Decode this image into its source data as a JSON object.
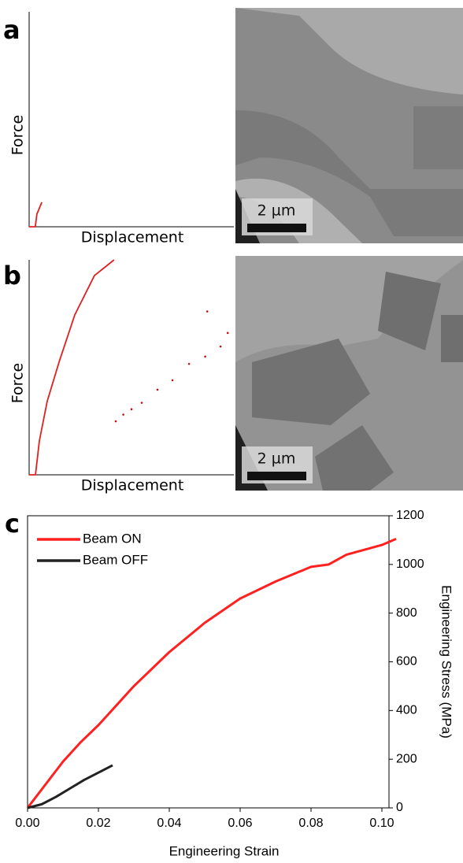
{
  "chart_data": [
    {
      "type": "line",
      "label": "a",
      "xlabel": "Displacement",
      "ylabel": "Force",
      "scale_bar": "2 µm",
      "xlim": [
        0,
        100
      ],
      "ylim": [
        0,
        100
      ],
      "series": [
        {
          "color": "#e02020",
          "style": "line",
          "x": [
            0,
            3,
            3.8,
            6.2
          ],
          "values": [
            0,
            0,
            5.9,
            11.4
          ]
        }
      ]
    },
    {
      "type": "line",
      "label": "b",
      "xlabel": "Displacement",
      "ylabel": "Force",
      "scale_bar": "2 µm",
      "xlim": [
        0,
        100
      ],
      "ylim": [
        0,
        100
      ],
      "series": [
        {
          "color": "#e02020",
          "style": "line",
          "x": [
            0,
            3.1,
            5,
            8.8,
            14.6,
            22.3,
            31.9,
            41.5
          ],
          "values": [
            0,
            0,
            15.8,
            34.1,
            52.4,
            74.4,
            92.7,
            100
          ]
        },
        {
          "color": "#c01010",
          "style": "dots",
          "x": [
            42.3,
            46,
            50,
            55,
            62.7,
            70,
            78.1,
            86,
            93.5,
            87,
            97
          ],
          "values": [
            24.9,
            28,
            30.5,
            33.5,
            39.6,
            44,
            51.6,
            55,
            59.7,
            76,
            66
          ]
        }
      ]
    },
    {
      "type": "line",
      "label": "c",
      "xlabel": "Engineering Strain",
      "ylabel": "Engineering Stress (MPa)",
      "xlim": [
        0,
        0.102
      ],
      "y2lim": [
        0,
        1200
      ],
      "legend": "upper left",
      "xticks": [
        {
          "value": 0,
          "label": "0.00"
        },
        {
          "value": 0.02,
          "label": "0.02"
        },
        {
          "value": 0.04,
          "label": "0.04"
        },
        {
          "value": 0.06,
          "label": "0.06"
        },
        {
          "value": 0.08,
          "label": "0.08"
        },
        {
          "value": 0.1,
          "label": "0.10"
        }
      ],
      "y2ticks": [
        0,
        200,
        400,
        600,
        800,
        1000,
        1200
      ],
      "series": [
        {
          "name": "Beam ON",
          "color": "#ff2020",
          "axis": "y2",
          "style": "line",
          "x": [
            0,
            0.005,
            0.01,
            0.015,
            0.02,
            0.03,
            0.04,
            0.05,
            0.06,
            0.07,
            0.08,
            0.085,
            0.09,
            0.1,
            0.104
          ],
          "values": [
            0,
            95,
            190,
            270,
            340,
            500,
            640,
            760,
            860,
            930,
            990,
            1000,
            1040,
            1080,
            1105
          ]
        },
        {
          "name": "Beam OFF",
          "color": "#222222",
          "axis": "y2",
          "style": "line",
          "x": [
            0,
            0.004,
            0.008,
            0.012,
            0.016,
            0.02,
            0.024
          ],
          "values": [
            0,
            15,
            45,
            80,
            115,
            145,
            175
          ]
        }
      ]
    }
  ]
}
